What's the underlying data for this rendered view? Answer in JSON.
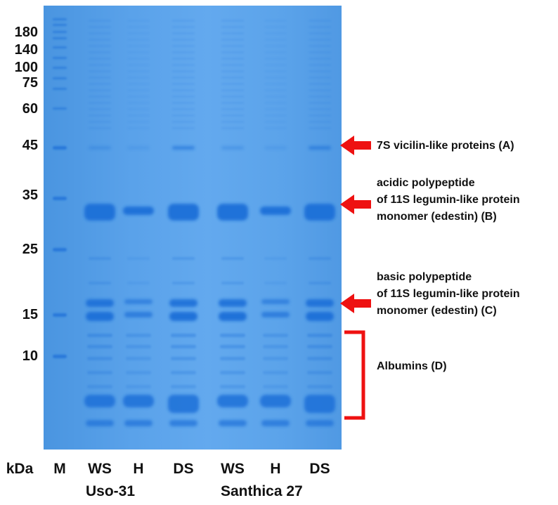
{
  "gel": {
    "background_color": "#5aa2ea",
    "band_color": "#1f6fd8",
    "lanes": [
      {
        "label": "M"
      },
      {
        "label": "WS"
      },
      {
        "label": "H"
      },
      {
        "label": "DS"
      },
      {
        "label": "WS"
      },
      {
        "label": "H"
      },
      {
        "label": "DS"
      }
    ],
    "groups": [
      {
        "name": "Uso-31"
      },
      {
        "name": "Santhica 27"
      }
    ]
  },
  "axis": {
    "unit": "kDa",
    "markers": [
      "180",
      "140",
      "100",
      "75",
      "60",
      "45",
      "35",
      "25",
      "15",
      "10"
    ]
  },
  "annotations": {
    "a": {
      "line1": "7S vicilin-like proteins (A)"
    },
    "b": {
      "line1": "acidic polypeptide",
      "line2": "of 11S legumin-like protein",
      "line3": "monomer (edestin) (B)"
    },
    "c": {
      "line1": "basic polypeptide",
      "line2": "of 11S legumin-like protein",
      "line3": "monomer (edestin) (C)"
    },
    "d": {
      "line1": "Albumins (D)"
    },
    "arrow_color": "#ee1111"
  }
}
